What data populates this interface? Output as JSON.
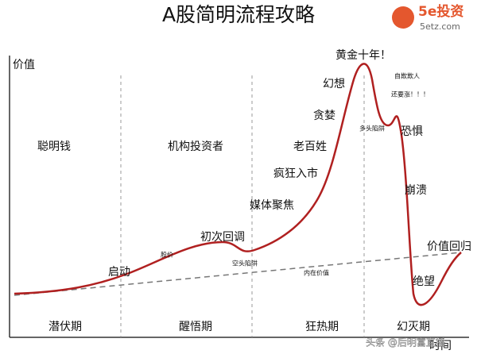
{
  "header": {
    "title": "A股简明流程攻略"
  },
  "logo": {
    "brand": "5e投资",
    "site": "5etz.com"
  },
  "axis": {
    "y": "价值",
    "x": "时间"
  },
  "columns": [
    "聪明钱",
    "机构投资者",
    "老百姓"
  ],
  "phases": [
    "潜伏期",
    "醒悟期",
    "狂热期",
    "幻灭期"
  ],
  "annotations": [
    "启动",
    "股价",
    "初次回调",
    "空头陷阱",
    "媒体聚焦",
    "疯狂入市",
    "贪婪",
    "幻想",
    "黄金十年！",
    "自欺欺人",
    "多头陷阱",
    "还要涨！！！",
    "恐惧",
    "崩溃",
    "绝望",
    "价值回归",
    "内在价值"
  ],
  "watermark": "头条 @后明富直播"
}
